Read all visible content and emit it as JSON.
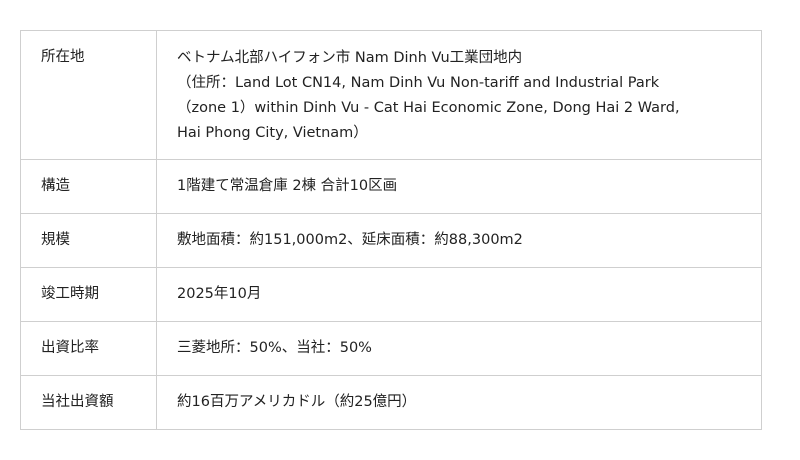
{
  "rows": [
    {
      "label": "所在地",
      "lines": [
        "ベトナム北部ハイフォン市 Nam Dinh Vu工業団地内",
        "（住所：Land Lot CN14, Nam Dinh Vu Non-tariff and Industrial Park",
        "（zone 1）within Dinh Vu - Cat Hai Economic Zone, Dong Hai 2 Ward,",
        "Hai Phong City, Vietnam）"
      ]
    },
    {
      "label": "構造",
      "value": "1階建て常温倉庫 2棟 合計10区画"
    },
    {
      "label": "規模",
      "value": "敷地面積：約151,000m2、延床面積：約88,300m2"
    },
    {
      "label": "竣工時期",
      "value": "2025年10月"
    },
    {
      "label": "出資比率",
      "value": "三菱地所：50%、当社：50%"
    },
    {
      "label": "当社出資額",
      "value": "約16百万アメリカドル（約25億円）"
    }
  ]
}
